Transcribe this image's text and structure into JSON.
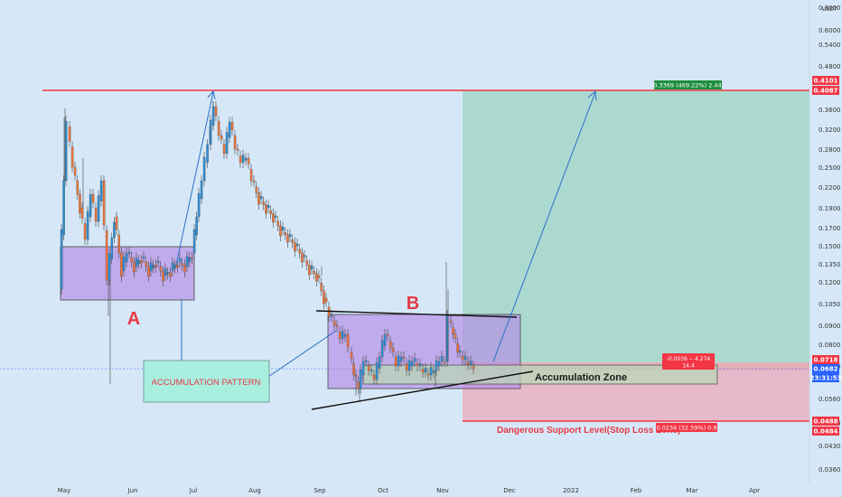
{
  "chart_data": {
    "type": "candlestick",
    "currency": "USDT",
    "y_scale": "log",
    "ylim": [
      0.033,
      0.82
    ],
    "y_ticks": [
      "0.8000",
      "0.6000",
      "0.5400",
      "0.4800",
      "0.3600",
      "0.3200",
      "0.2800",
      "0.2500",
      "0.2200",
      "0.1900",
      "0.1700",
      "0.1500",
      "0.1350",
      "0.1200",
      "0.1050",
      "0.0900",
      "0.0800",
      "0.0700",
      "0.0560",
      "0.0500",
      "0.0430",
      "0.0360"
    ],
    "x_ticks": [
      "May",
      "Jun",
      "Jul",
      "Aug",
      "Sep",
      "Oct",
      "Nov",
      "Dec",
      "2022",
      "Feb",
      "Mar",
      "Apr"
    ],
    "price_labels": [
      {
        "text": "0.4101",
        "color": "#f23645"
      },
      {
        "text": "0.4087",
        "color": "#f23645"
      },
      {
        "text": "0.0718",
        "color": "#f23645"
      },
      {
        "text": "0.0682",
        "color": "#2962ff"
      },
      {
        "text": "23:31:53",
        "color": "#2962ff"
      },
      {
        "text": "0.0488",
        "color": "#f23645"
      },
      {
        "text": "0.0484",
        "color": "#f23645"
      }
    ],
    "annotations": {
      "label_a": "A",
      "label_b": "B",
      "pattern": "ACCUMULATION PATTERN",
      "zone": "Accumulation Zone",
      "stop": "Dangerous Support Level(Stop Loss Zone)",
      "target_badge": "0.3369 (469.22%) 2.44",
      "stop_badge": "0.0234 (32.59%) 0.9",
      "rr_line1": "-0.0036 -- 4.274",
      "rr_line2": "14.4"
    },
    "colors": {
      "up": "#2f8fd6",
      "down": "#f1743a",
      "accumulation_box": "#b48ae6",
      "target_zone": "#9ed4c2",
      "stop_zone": "#e9b2c3",
      "resistance_line": "#f23645"
    }
  }
}
